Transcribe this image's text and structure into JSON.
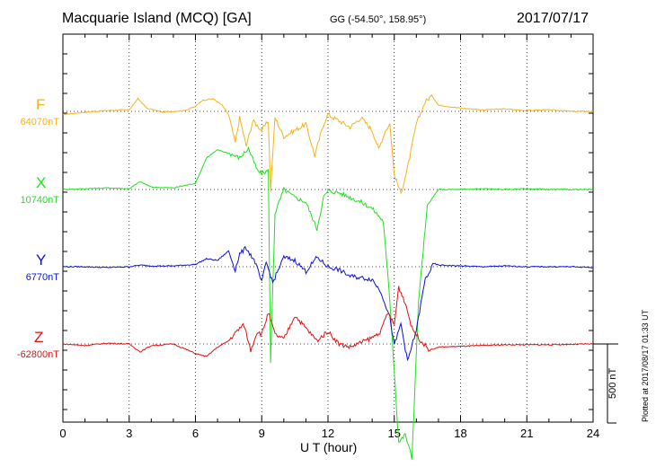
{
  "header": {
    "title": "Macquarie Island (MCQ)  [GA]",
    "coords": "GG (-54.50°, 158.95°)",
    "date": "2017/07/17"
  },
  "footer": {
    "xlabel": "U T (hour)",
    "plotted": "Plotted at 2017/08/17 01:33 UT",
    "scale": "500 nT"
  },
  "chart_data": {
    "type": "line",
    "xlabel": "U T (hour)",
    "xlim": [
      0,
      24
    ],
    "xticks": [
      0,
      3,
      6,
      9,
      12,
      15,
      18,
      21,
      24
    ],
    "xtick_labels": [
      "0",
      "3",
      "6",
      "9",
      "12",
      "15",
      "18",
      "21",
      "24"
    ],
    "grid": true,
    "scale_bar_nT": 500,
    "series": [
      {
        "name": "F",
        "baseline_label": "64070nT",
        "color": "#f5b21b",
        "baseline_nT": 64070,
        "points": [
          [
            0,
            -20
          ],
          [
            1,
            -5
          ],
          [
            2,
            5
          ],
          [
            3,
            10
          ],
          [
            3.4,
            80
          ],
          [
            3.8,
            20
          ],
          [
            4.5,
            -5
          ],
          [
            5.5,
            5
          ],
          [
            6,
            30
          ],
          [
            6.3,
            70
          ],
          [
            6.8,
            80
          ],
          [
            7.2,
            40
          ],
          [
            7.5,
            -20
          ],
          [
            7.8,
            -200
          ],
          [
            8,
            -40
          ],
          [
            8.3,
            -220
          ],
          [
            8.6,
            -60
          ],
          [
            9,
            -120
          ],
          [
            9.3,
            -60
          ],
          [
            9.4,
            -500
          ],
          [
            9.6,
            -40
          ],
          [
            10,
            -160
          ],
          [
            10.5,
            -120
          ],
          [
            11,
            -80
          ],
          [
            11.4,
            -280
          ],
          [
            11.8,
            -80
          ],
          [
            12,
            -20
          ],
          [
            12.5,
            -60
          ],
          [
            13,
            -100
          ],
          [
            13.5,
            -40
          ],
          [
            14,
            -120
          ],
          [
            14.3,
            -240
          ],
          [
            14.6,
            -120
          ],
          [
            14.8,
            -80
          ],
          [
            15,
            -400
          ],
          [
            15.3,
            -520
          ],
          [
            15.6,
            -360
          ],
          [
            16,
            -80
          ],
          [
            16.4,
            60
          ],
          [
            16.7,
            100
          ],
          [
            17,
            40
          ],
          [
            18,
            20
          ],
          [
            19,
            10
          ],
          [
            20,
            15
          ],
          [
            21,
            5
          ],
          [
            22,
            10
          ],
          [
            23,
            0
          ],
          [
            24,
            0
          ]
        ]
      },
      {
        "name": "X",
        "baseline_label": "10740nT",
        "color": "#22e022",
        "baseline_nT": 10740,
        "points": [
          [
            0,
            0
          ],
          [
            1,
            5
          ],
          [
            2,
            10
          ],
          [
            3,
            5
          ],
          [
            3.5,
            50
          ],
          [
            4,
            15
          ],
          [
            5,
            10
          ],
          [
            6,
            40
          ],
          [
            6.5,
            200
          ],
          [
            7,
            250
          ],
          [
            7.5,
            230
          ],
          [
            8,
            200
          ],
          [
            8.4,
            260
          ],
          [
            8.8,
            120
          ],
          [
            9,
            100
          ],
          [
            9.3,
            120
          ],
          [
            9.4,
            -1100
          ],
          [
            9.6,
            -150
          ],
          [
            10,
            0
          ],
          [
            10.5,
            -50
          ],
          [
            11,
            -80
          ],
          [
            11.5,
            -250
          ],
          [
            11.8,
            -50
          ],
          [
            12,
            -10
          ],
          [
            12.5,
            -20
          ],
          [
            13,
            -50
          ],
          [
            13.5,
            -80
          ],
          [
            14,
            -120
          ],
          [
            14.5,
            -200
          ],
          [
            14.8,
            -700
          ],
          [
            15.2,
            -1600
          ],
          [
            15.5,
            -1550
          ],
          [
            15.8,
            -1700
          ],
          [
            16.1,
            -700
          ],
          [
            16.5,
            -100
          ],
          [
            17,
            0
          ],
          [
            18,
            0
          ],
          [
            19,
            5
          ],
          [
            20,
            0
          ],
          [
            21,
            5
          ],
          [
            22,
            0
          ],
          [
            23,
            0
          ],
          [
            24,
            0
          ]
        ]
      },
      {
        "name": "Y",
        "baseline_label": "6770nT",
        "color": "#0a10d8",
        "baseline_nT": 6770,
        "points": [
          [
            0,
            0
          ],
          [
            1,
            0
          ],
          [
            2,
            -5
          ],
          [
            3,
            0
          ],
          [
            3.5,
            10
          ],
          [
            4,
            5
          ],
          [
            5,
            5
          ],
          [
            6,
            15
          ],
          [
            6.5,
            50
          ],
          [
            7,
            40
          ],
          [
            7.5,
            100
          ],
          [
            7.8,
            -20
          ],
          [
            8,
            80
          ],
          [
            8.3,
            120
          ],
          [
            8.7,
            30
          ],
          [
            9,
            -100
          ],
          [
            9.2,
            30
          ],
          [
            9.5,
            -100
          ],
          [
            10,
            60
          ],
          [
            10.5,
            40
          ],
          [
            11,
            -30
          ],
          [
            11.5,
            60
          ],
          [
            12,
            0
          ],
          [
            12.5,
            -20
          ],
          [
            13,
            -60
          ],
          [
            13.5,
            -70
          ],
          [
            14,
            -80
          ],
          [
            14.4,
            -160
          ],
          [
            14.8,
            -320
          ],
          [
            15,
            -500
          ],
          [
            15.3,
            -360
          ],
          [
            15.6,
            -600
          ],
          [
            16,
            -400
          ],
          [
            16.4,
            -80
          ],
          [
            16.8,
            20
          ],
          [
            17,
            10
          ],
          [
            18,
            5
          ],
          [
            19,
            0
          ],
          [
            20,
            5
          ],
          [
            21,
            0
          ],
          [
            22,
            0
          ],
          [
            23,
            0
          ],
          [
            24,
            -5
          ]
        ]
      },
      {
        "name": "Z",
        "baseline_label": "-62800nT",
        "color": "#e01010",
        "baseline_nT": -62800,
        "points": [
          [
            0,
            0
          ],
          [
            1,
            -10
          ],
          [
            2,
            5
          ],
          [
            3,
            0
          ],
          [
            3.5,
            -50
          ],
          [
            4,
            -10
          ],
          [
            5,
            0
          ],
          [
            6,
            -60
          ],
          [
            6.5,
            -80
          ],
          [
            7,
            -20
          ],
          [
            7.5,
            20
          ],
          [
            8,
            100
          ],
          [
            8.2,
            120
          ],
          [
            8.5,
            -40
          ],
          [
            8.8,
            80
          ],
          [
            9,
            60
          ],
          [
            9.3,
            200
          ],
          [
            9.6,
            60
          ],
          [
            10,
            30
          ],
          [
            10.5,
            180
          ],
          [
            11,
            100
          ],
          [
            11.5,
            20
          ],
          [
            12,
            80
          ],
          [
            12.5,
            0
          ],
          [
            13,
            -20
          ],
          [
            13.5,
            10
          ],
          [
            14,
            40
          ],
          [
            14.4,
            80
          ],
          [
            14.7,
            200
          ],
          [
            15,
            120
          ],
          [
            15.2,
            360
          ],
          [
            15.5,
            260
          ],
          [
            15.8,
            100
          ],
          [
            16.2,
            20
          ],
          [
            16.6,
            -40
          ],
          [
            17,
            -20
          ],
          [
            18,
            -15
          ],
          [
            19,
            -10
          ],
          [
            20,
            -5
          ],
          [
            21,
            -5
          ],
          [
            22,
            -5
          ],
          [
            23,
            -2
          ],
          [
            24,
            0
          ]
        ]
      }
    ]
  }
}
